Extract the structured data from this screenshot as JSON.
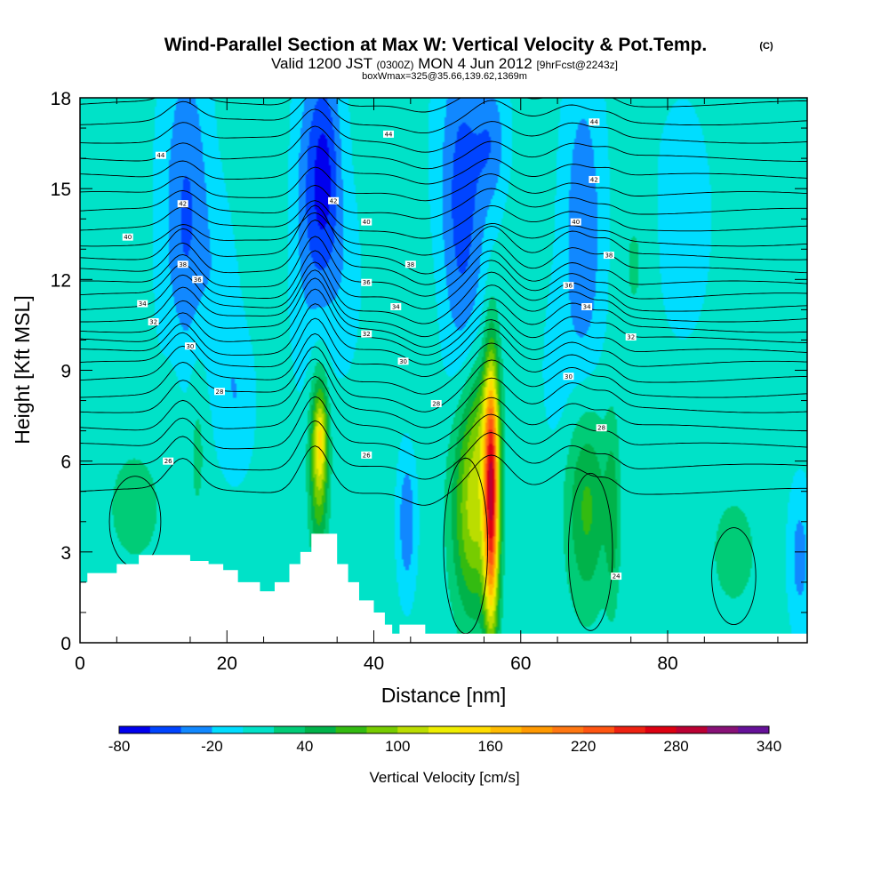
{
  "chart_data": {
    "type": "heatmap",
    "title": "Wind-Parallel Section at Max W: Vertical Velocity & Pot.Temp.",
    "title_mark": "(C)",
    "subtitle": {
      "valid": "Valid 1200 JST",
      "utc": "(0300Z)",
      "date": "MON 4 Jun 2012",
      "fcst": "[9hrFcst@2243z]"
    },
    "box_note": "boxWmax=325@35.66,139.62,1369m",
    "xlabel": "Distance [nm]",
    "ylabel": "Height [Kft MSL]",
    "xlim": [
      0,
      99
    ],
    "ylim": [
      0,
      18
    ],
    "x_ticks": [
      "0",
      "20",
      "40",
      "60",
      "80"
    ],
    "y_ticks": [
      "0",
      "3",
      "6",
      "9",
      "12",
      "15",
      "18"
    ],
    "background_w": 5,
    "w_levels": [
      -80,
      -60,
      -40,
      -20,
      0,
      20,
      40,
      60,
      80,
      100,
      120,
      140,
      160,
      180,
      200,
      220,
      240,
      260,
      280,
      300,
      320,
      340
    ],
    "w_colors": [
      "#0000ee",
      "#0044ff",
      "#1188ff",
      "#00ddff",
      "#00e2c8",
      "#00cc77",
      "#00b34a",
      "#33bb11",
      "#77cc00",
      "#bbdd00",
      "#eeee00",
      "#ffdd00",
      "#ffbb00",
      "#ff9900",
      "#ff7711",
      "#ff5511",
      "#ee2211",
      "#dd0011",
      "#bb0033",
      "#881177",
      "#661199"
    ],
    "colorbar_labels": [
      "-80",
      "-20",
      "40",
      "100",
      "160",
      "220",
      "280",
      "340"
    ],
    "colorbar_title": "Vertical Velocity [cm/s]",
    "w_features": [
      {
        "x": 7.5,
        "y": 4.5,
        "sx": 3.5,
        "sy": 1.8,
        "w": 22
      },
      {
        "x": 13.0,
        "y": 8.5,
        "sx": 1.2,
        "sy": 1.8,
        "w": 12
      },
      {
        "x": 16.0,
        "y": 7.0,
        "sx": 1.0,
        "sy": 2.4,
        "w": 25
      },
      {
        "x": 14.5,
        "y": 14.0,
        "sx": 2.2,
        "sy": 4.0,
        "w": -48
      },
      {
        "x": 19.5,
        "y": 12.0,
        "sx": 1.6,
        "sy": 3.0,
        "w": -22
      },
      {
        "x": 21.5,
        "y": 8.0,
        "sx": 1.5,
        "sy": 1.6,
        "w": -20
      },
      {
        "x": 22.0,
        "y": 16.0,
        "sx": 2.5,
        "sy": 2.5,
        "w": 16
      },
      {
        "x": 29.0,
        "y": 15.0,
        "sx": 1.8,
        "sy": 3.5,
        "w": 12
      },
      {
        "x": 31.0,
        "y": 14.5,
        "sx": 2.0,
        "sy": 3.5,
        "w": -42
      },
      {
        "x": 33.5,
        "y": 15.5,
        "sx": 1.5,
        "sy": 2.5,
        "w": -55
      },
      {
        "x": 32.5,
        "y": 6.0,
        "sx": 0.9,
        "sy": 2.0,
        "w": 95
      },
      {
        "x": 32.8,
        "y": 6.8,
        "sx": 0.6,
        "sy": 1.0,
        "w": 60
      },
      {
        "x": 36.0,
        "y": 12.0,
        "sx": 1.5,
        "sy": 2.0,
        "w": -15
      },
      {
        "x": 44.5,
        "y": 4.0,
        "sx": 0.8,
        "sy": 1.5,
        "w": -45
      },
      {
        "x": 47.0,
        "y": 10.5,
        "sx": 2.5,
        "sy": 2.5,
        "w": 8
      },
      {
        "x": 53.5,
        "y": 4.5,
        "sx": 2.0,
        "sy": 2.5,
        "w": 105
      },
      {
        "x": 56.0,
        "y": 4.8,
        "sx": 0.7,
        "sy": 3.0,
        "w": 235
      },
      {
        "x": 55.0,
        "y": 7.5,
        "sx": 1.5,
        "sy": 1.5,
        "w": 40
      },
      {
        "x": 52.0,
        "y": 14.5,
        "sx": 2.2,
        "sy": 4.0,
        "w": -55
      },
      {
        "x": 56.0,
        "y": 16.5,
        "sx": 1.5,
        "sy": 1.5,
        "w": -35
      },
      {
        "x": 59.5,
        "y": 12.0,
        "sx": 1.5,
        "sy": 2.0,
        "w": 10
      },
      {
        "x": 69.0,
        "y": 4.5,
        "sx": 2.0,
        "sy": 2.4,
        "w": 60
      },
      {
        "x": 72.5,
        "y": 4.2,
        "sx": 0.7,
        "sy": 2.2,
        "w": 40
      },
      {
        "x": 68.5,
        "y": 13.5,
        "sx": 1.8,
        "sy": 3.5,
        "w": -45
      },
      {
        "x": 75.5,
        "y": 12.5,
        "sx": 1.5,
        "sy": 2.0,
        "w": 18
      },
      {
        "x": 65.0,
        "y": 9.0,
        "sx": 1.5,
        "sy": 2.0,
        "w": -12
      },
      {
        "x": 89.0,
        "y": 3.0,
        "sx": 2.5,
        "sy": 1.5,
        "w": 25
      },
      {
        "x": 98.0,
        "y": 2.8,
        "sx": 1.0,
        "sy": 1.5,
        "w": -35
      },
      {
        "x": 82.0,
        "y": 14.0,
        "sx": 3.0,
        "sy": 3.0,
        "w": -12
      }
    ],
    "terrain": [
      [
        0,
        2.0
      ],
      [
        1,
        2.3
      ],
      [
        5,
        2.6
      ],
      [
        8,
        2.9
      ],
      [
        15,
        2.7
      ],
      [
        17.5,
        2.6
      ],
      [
        19.5,
        2.4
      ],
      [
        21.5,
        2.0
      ],
      [
        24.5,
        1.7
      ],
      [
        26.5,
        2.0
      ],
      [
        28.5,
        2.6
      ],
      [
        30,
        3.0
      ],
      [
        31.5,
        3.6
      ],
      [
        33.5,
        3.6
      ],
      [
        35,
        2.6
      ],
      [
        36.5,
        2.0
      ],
      [
        38,
        1.4
      ],
      [
        40,
        1.0
      ],
      [
        41.5,
        0.6
      ],
      [
        42.5,
        0.3
      ],
      [
        43.5,
        0.6
      ],
      [
        46,
        0.6
      ],
      [
        47,
        0.3
      ],
      [
        99,
        0.3
      ]
    ],
    "theta_levels": [
      "24",
      "26",
      "28",
      "30",
      "32",
      "34",
      "36",
      "38",
      "40",
      "42",
      "44"
    ],
    "theta_label_spots": [
      {
        "label": "24",
        "x": 73.0,
        "y": 2.2
      },
      {
        "label": "26",
        "x": 39.0,
        "y": 6.2
      },
      {
        "label": "26",
        "x": 12.0,
        "y": 6.0
      },
      {
        "label": "28",
        "x": 48.5,
        "y": 7.9
      },
      {
        "label": "28",
        "x": 71.0,
        "y": 7.1
      },
      {
        "label": "28",
        "x": 19.0,
        "y": 8.3
      },
      {
        "label": "30",
        "x": 44.0,
        "y": 9.3
      },
      {
        "label": "30",
        "x": 66.5,
        "y": 8.8
      },
      {
        "label": "30",
        "x": 15.0,
        "y": 9.8
      },
      {
        "label": "32",
        "x": 39.0,
        "y": 10.2
      },
      {
        "label": "32",
        "x": 75.0,
        "y": 10.1
      },
      {
        "label": "32",
        "x": 10.0,
        "y": 10.6
      },
      {
        "label": "34",
        "x": 43.0,
        "y": 11.1
      },
      {
        "label": "34",
        "x": 69.0,
        "y": 11.1
      },
      {
        "label": "34",
        "x": 8.5,
        "y": 11.2
      },
      {
        "label": "36",
        "x": 39.0,
        "y": 11.9
      },
      {
        "label": "36",
        "x": 66.5,
        "y": 11.8
      },
      {
        "label": "36",
        "x": 16.0,
        "y": 12.0
      },
      {
        "label": "38",
        "x": 45.0,
        "y": 12.5
      },
      {
        "label": "38",
        "x": 72.0,
        "y": 12.8
      },
      {
        "label": "38",
        "x": 14.0,
        "y": 12.5
      },
      {
        "label": "40",
        "x": 39.0,
        "y": 13.9
      },
      {
        "label": "40",
        "x": 67.5,
        "y": 13.9
      },
      {
        "label": "40",
        "x": 6.5,
        "y": 13.4
      },
      {
        "label": "42",
        "x": 34.5,
        "y": 14.6
      },
      {
        "label": "42",
        "x": 70.0,
        "y": 15.3
      },
      {
        "label": "42",
        "x": 14.0,
        "y": 14.5
      },
      {
        "label": "44",
        "x": 42.0,
        "y": 16.8
      },
      {
        "label": "44",
        "x": 70.0,
        "y": 17.2
      },
      {
        "label": "44",
        "x": 11.0,
        "y": 16.1
      }
    ],
    "grid": false
  }
}
